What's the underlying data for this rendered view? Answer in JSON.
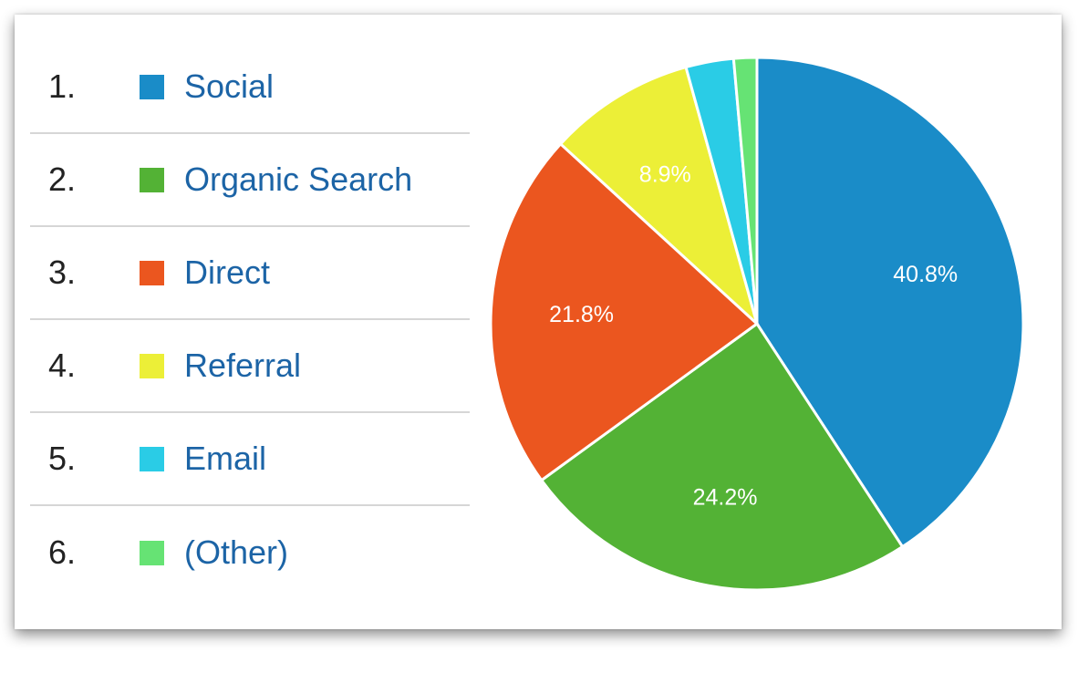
{
  "chart_data": {
    "type": "pie",
    "legend_position": "left",
    "slices": [
      {
        "rank": "1.",
        "label": "Social",
        "value": 40.8,
        "data_label": "40.8%",
        "color": "#1a8cc8"
      },
      {
        "rank": "2.",
        "label": "Organic Search",
        "value": 24.2,
        "data_label": "24.2%",
        "color": "#53b235"
      },
      {
        "rank": "3.",
        "label": "Direct",
        "value": 21.8,
        "data_label": "21.8%",
        "color": "#eb561f"
      },
      {
        "rank": "4.",
        "label": "Referral",
        "value": 8.9,
        "data_label": "8.9%",
        "color": "#ecef37"
      },
      {
        "rank": "5.",
        "label": "Email",
        "value": 2.9,
        "data_label": "",
        "color": "#2accE6"
      },
      {
        "rank": "6.",
        "label": "(Other)",
        "value": 1.4,
        "data_label": "",
        "color": "#66e374"
      }
    ]
  }
}
